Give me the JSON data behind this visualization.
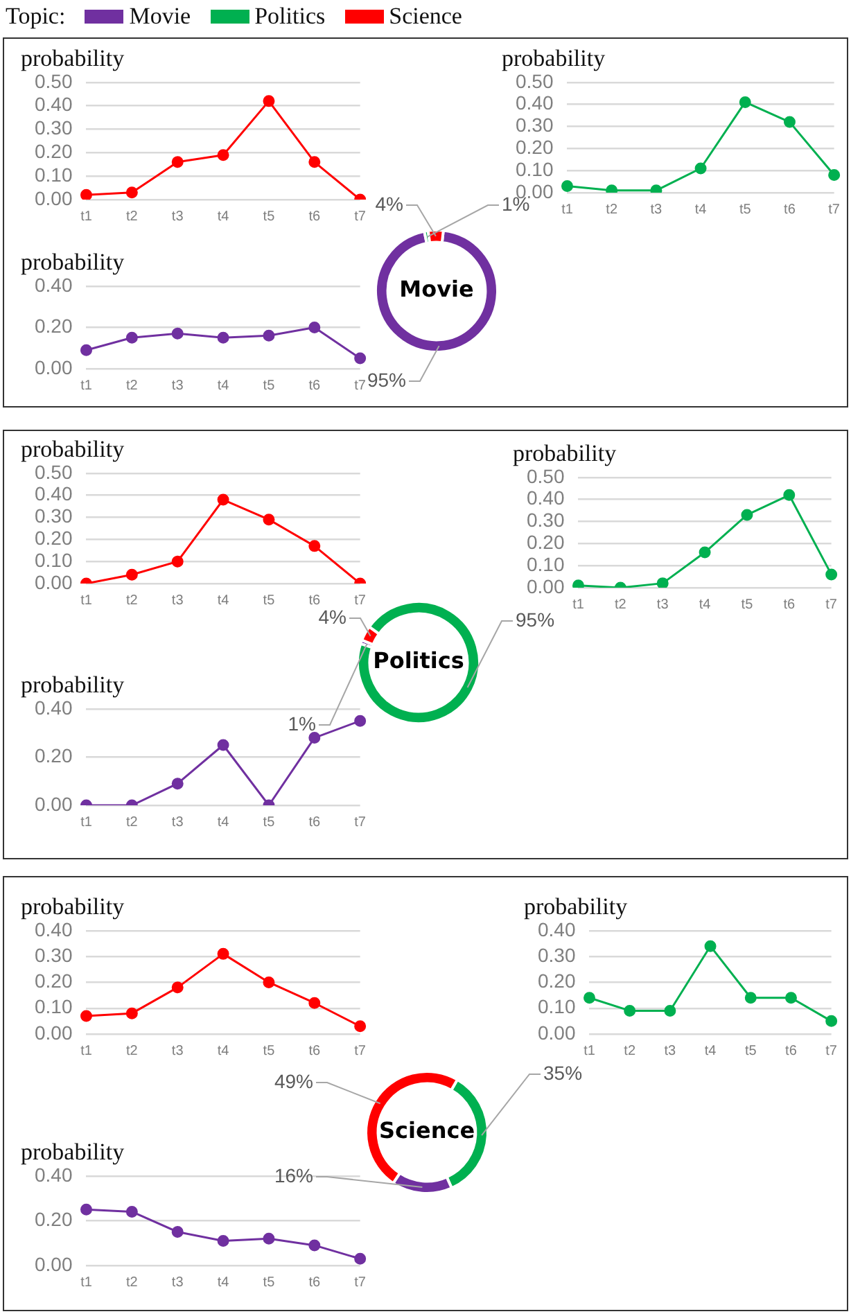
{
  "chart_data": [
    {
      "type": "line",
      "ylabel": "probability",
      "categories": [
        "t1",
        "t2",
        "t3",
        "t4",
        "t5",
        "t6",
        "t7"
      ],
      "values": [
        0.02,
        0.03,
        0.16,
        0.19,
        0.42,
        0.16,
        0.0
      ],
      "color": "#ff0000",
      "ylim": [
        0,
        0.5
      ],
      "yticks": [
        {
          "value": 0,
          "label": "0.00"
        },
        {
          "value": 0.1,
          "label": "0.10"
        },
        {
          "value": 0.2,
          "label": "0.20"
        },
        {
          "value": 0.3,
          "label": "0.30"
        },
        {
          "value": 0.4,
          "label": "0.40"
        },
        {
          "value": 0.5,
          "label": "0.50"
        }
      ],
      "grid": "y",
      "marker": "circle"
    },
    {
      "type": "line",
      "ylabel": "probability",
      "categories": [
        "t1",
        "t2",
        "t3",
        "t4",
        "t5",
        "t6",
        "t7"
      ],
      "values": [
        0.03,
        0.01,
        0.01,
        0.11,
        0.41,
        0.32,
        0.08
      ],
      "color": "#00b050",
      "ylim": [
        0,
        0.5
      ],
      "yticks": [
        {
          "value": 0,
          "label": "0.00"
        },
        {
          "value": 0.1,
          "label": "0.10"
        },
        {
          "value": 0.2,
          "label": "0.20"
        },
        {
          "value": 0.3,
          "label": "0.30"
        },
        {
          "value": 0.4,
          "label": "0.40"
        },
        {
          "value": 0.5,
          "label": "0.50"
        }
      ],
      "grid": "y",
      "marker": "circle"
    },
    {
      "type": "line",
      "ylabel": "probability",
      "categories": [
        "t1",
        "t2",
        "t3",
        "t4",
        "t5",
        "t6",
        "t7"
      ],
      "values": [
        0.09,
        0.15,
        0.17,
        0.15,
        0.16,
        0.2,
        0.05
      ],
      "color": "#7030a0",
      "ylim": [
        0,
        0.4
      ],
      "yticks": [
        {
          "value": 0,
          "label": "0.00"
        },
        {
          "value": 0.2,
          "label": "0.20"
        },
        {
          "value": 0.4,
          "label": "0.40"
        }
      ],
      "grid": "y",
      "marker": "circle"
    },
    {
      "type": "donut",
      "title": "Movie",
      "legend": "top",
      "legend_title": "Topic:",
      "categories": [
        "Movie",
        "Politics",
        "Science"
      ],
      "values": [
        95,
        1,
        4
      ],
      "colors": [
        "#7030a0",
        "#00b050",
        "#ff0000"
      ],
      "value_labels": [
        "95%",
        "1%",
        "4%"
      ]
    },
    {
      "type": "line",
      "ylabel": "probability",
      "categories": [
        "t1",
        "t2",
        "t3",
        "t4",
        "t5",
        "t6",
        "t7"
      ],
      "values": [
        0.0,
        0.04,
        0.1,
        0.38,
        0.29,
        0.17,
        0.0
      ],
      "color": "#ff0000",
      "ylim": [
        0,
        0.5
      ],
      "yticks": [
        {
          "value": 0,
          "label": "0.00"
        },
        {
          "value": 0.1,
          "label": "0.10"
        },
        {
          "value": 0.2,
          "label": "0.20"
        },
        {
          "value": 0.3,
          "label": "0.30"
        },
        {
          "value": 0.4,
          "label": "0.40"
        },
        {
          "value": 0.5,
          "label": "0.50"
        }
      ],
      "grid": "y",
      "marker": "circle"
    },
    {
      "type": "line",
      "ylabel": "probability",
      "categories": [
        "t1",
        "t2",
        "t3",
        "t4",
        "t5",
        "t6",
        "t7"
      ],
      "values": [
        0.01,
        0.0,
        0.02,
        0.16,
        0.33,
        0.42,
        0.06
      ],
      "color": "#00b050",
      "ylim": [
        0,
        0.5
      ],
      "yticks": [
        {
          "value": 0,
          "label": "0.00"
        },
        {
          "value": 0.1,
          "label": "0.10"
        },
        {
          "value": 0.2,
          "label": "0.20"
        },
        {
          "value": 0.3,
          "label": "0.30"
        },
        {
          "value": 0.4,
          "label": "0.40"
        },
        {
          "value": 0.5,
          "label": "0.50"
        }
      ],
      "grid": "y",
      "marker": "circle"
    },
    {
      "type": "line",
      "ylabel": "probability",
      "categories": [
        "t1",
        "t2",
        "t3",
        "t4",
        "t5",
        "t6",
        "t7"
      ],
      "values": [
        0.0,
        0.0,
        0.09,
        0.25,
        0.0,
        0.28,
        0.35
      ],
      "color": "#7030a0",
      "ylim": [
        0,
        0.4
      ],
      "yticks": [
        {
          "value": 0,
          "label": "0.00"
        },
        {
          "value": 0.2,
          "label": "0.20"
        },
        {
          "value": 0.4,
          "label": "0.40"
        }
      ],
      "grid": "y",
      "marker": "circle"
    },
    {
      "type": "donut",
      "title": "Politics",
      "categories": [
        null,
        null,
        null
      ],
      "values": [
        1,
        4,
        95
      ],
      "colors": [
        "#7030a0",
        "#ff0000",
        "#00b050"
      ],
      "value_labels": [
        "1%",
        "4%",
        "95%"
      ]
    },
    {
      "type": "line",
      "ylabel": "probability",
      "categories": [
        "t1",
        "t2",
        "t3",
        "t4",
        "t5",
        "t6",
        "t7"
      ],
      "values": [
        0.07,
        0.08,
        0.18,
        0.31,
        0.2,
        0.12,
        0.03
      ],
      "color": "#ff0000",
      "ylim": [
        0,
        0.4
      ],
      "yticks": [
        {
          "value": 0,
          "label": "0.00"
        },
        {
          "value": 0.1,
          "label": "0.10"
        },
        {
          "value": 0.2,
          "label": "0.20"
        },
        {
          "value": 0.3,
          "label": "0.30"
        },
        {
          "value": 0.4,
          "label": "0.40"
        }
      ],
      "grid": "y",
      "marker": "circle"
    },
    {
      "type": "line",
      "ylabel": "probability",
      "categories": [
        "t1",
        "t2",
        "t3",
        "t4",
        "t5",
        "t6",
        "t7"
      ],
      "values": [
        0.14,
        0.09,
        0.09,
        0.34,
        0.14,
        0.14,
        0.05
      ],
      "color": "#00b050",
      "ylim": [
        0,
        0.4
      ],
      "yticks": [
        {
          "value": 0,
          "label": "0.00"
        },
        {
          "value": 0.1,
          "label": "0.10"
        },
        {
          "value": 0.2,
          "label": "0.20"
        },
        {
          "value": 0.3,
          "label": "0.30"
        },
        {
          "value": 0.4,
          "label": "0.40"
        }
      ],
      "grid": "y",
      "marker": "circle"
    },
    {
      "type": "line",
      "ylabel": "probability",
      "categories": [
        "t1",
        "t2",
        "t3",
        "t4",
        "t5",
        "t6",
        "t7"
      ],
      "values": [
        0.25,
        0.24,
        0.15,
        0.11,
        0.12,
        0.09,
        0.03
      ],
      "color": "#7030a0",
      "ylim": [
        0,
        0.4
      ],
      "yticks": [
        {
          "value": 0,
          "label": "0.00"
        },
        {
          "value": 0.2,
          "label": "0.20"
        },
        {
          "value": 0.4,
          "label": "0.40"
        }
      ],
      "grid": "y",
      "marker": "circle"
    },
    {
      "type": "donut",
      "title": "Science",
      "categories": [
        null,
        null,
        null
      ],
      "values": [
        35,
        16,
        49
      ],
      "colors": [
        "#00b050",
        "#7030a0",
        "#ff0000"
      ],
      "value_labels": [
        "35%",
        "16%",
        "49%"
      ]
    }
  ]
}
